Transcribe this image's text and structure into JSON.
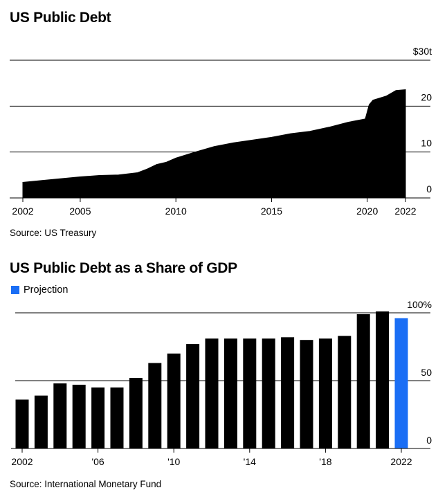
{
  "chart_data": [
    {
      "type": "area",
      "title": "US Public Debt",
      "source": "Source: US Treasury",
      "y_unit_prefix": "$",
      "y_unit_suffix": "t",
      "ylim": [
        0,
        30
      ],
      "yticks": [
        0,
        10,
        20,
        30
      ],
      "xlim": [
        2002,
        2022
      ],
      "xticks": [
        2002,
        2005,
        2010,
        2015,
        2020,
        2022
      ],
      "grid": true,
      "color": "#000000",
      "x": [
        2002.0,
        2003.0,
        2004.0,
        2005.0,
        2006.0,
        2007.0,
        2008.0,
        2008.5,
        2009.0,
        2009.5,
        2010.0,
        2011.0,
        2012.0,
        2013.0,
        2014.0,
        2015.0,
        2016.0,
        2017.0,
        2018.0,
        2019.0,
        2019.9,
        2020.1,
        2020.3,
        2021.0,
        2021.5,
        2022.0
      ],
      "values": [
        3.4,
        3.8,
        4.2,
        4.6,
        4.9,
        5.0,
        5.5,
        6.3,
        7.3,
        7.8,
        8.7,
        10.0,
        11.2,
        12.0,
        12.6,
        13.2,
        14.0,
        14.5,
        15.4,
        16.5,
        17.2,
        20.3,
        21.3,
        22.2,
        23.4,
        23.6
      ]
    },
    {
      "type": "bar",
      "title": "US Public Debt as a Share of GDP",
      "source": "Source: International Monetary Fund",
      "legend": [
        {
          "name": "Projection",
          "color": "#1a6ef5"
        }
      ],
      "y_unit_suffix": "%",
      "ylim": [
        0,
        100
      ],
      "yticks": [
        0,
        50,
        100
      ],
      "xticks": [
        "2002",
        "'06",
        "'10",
        "'14",
        "'18",
        "2022"
      ],
      "xtick_years": [
        2002,
        2006,
        2010,
        2014,
        2018,
        2022
      ],
      "grid": true,
      "bar_color": "#000000",
      "projection_color": "#1a6ef5",
      "years": [
        2002,
        2003,
        2004,
        2005,
        2006,
        2007,
        2008,
        2009,
        2010,
        2011,
        2012,
        2013,
        2014,
        2015,
        2016,
        2017,
        2018,
        2019,
        2020,
        2021,
        2022
      ],
      "values": [
        36,
        39,
        48,
        47,
        45,
        45,
        52,
        63,
        70,
        77,
        81,
        81,
        81,
        81,
        82,
        80,
        81,
        83,
        99,
        101,
        96
      ],
      "projected": [
        false,
        false,
        false,
        false,
        false,
        false,
        false,
        false,
        false,
        false,
        false,
        false,
        false,
        false,
        false,
        false,
        false,
        false,
        false,
        false,
        true
      ]
    }
  ]
}
